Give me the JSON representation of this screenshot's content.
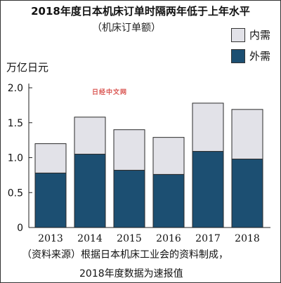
{
  "chart_data": {
    "type": "bar",
    "stacked": true,
    "title": "2018年度日本机床订单时隔两年低于上年水平",
    "subtitle": "（机床订单额）",
    "ylabel": "万亿日元",
    "categories": [
      "2013",
      "2014",
      "2015",
      "2016",
      "2017",
      "2018"
    ],
    "series": [
      {
        "name": "外需",
        "values": [
          0.78,
          1.05,
          0.82,
          0.76,
          1.09,
          0.98
        ],
        "color": "#1c4f72"
      },
      {
        "name": "内需",
        "values": [
          0.42,
          0.53,
          0.58,
          0.53,
          0.69,
          0.71
        ],
        "color": "#e2e2e8"
      }
    ],
    "ylim": [
      0,
      2.0
    ],
    "yticks": [
      "0",
      "0.5",
      "1.0",
      "1.5",
      "2.0"
    ],
    "grid": false,
    "legend_position": "top-right"
  },
  "source_note": {
    "line1": "（资料来源）根据日本机床工业会的资料制成，",
    "line2": "2018年度数据为速报值"
  },
  "watermark": "日经中文网"
}
